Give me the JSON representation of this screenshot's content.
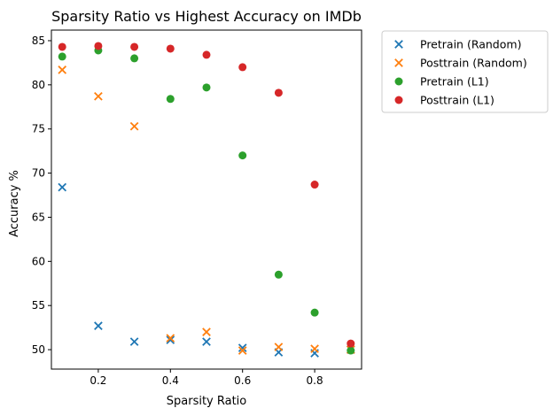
{
  "chart_data": {
    "type": "scatter",
    "title": "Sparsity Ratio vs Highest Accuracy on IMDb",
    "xlabel": "Sparsity Ratio",
    "ylabel": "Accuracy %",
    "xlim": [
      0.07,
      0.93
    ],
    "ylim": [
      47.8,
      86.2
    ],
    "xticks": [
      0.2,
      0.4,
      0.6,
      0.8
    ],
    "xtick_labels": [
      "0.2",
      "0.4",
      "0.6",
      "0.8"
    ],
    "yticks": [
      50,
      55,
      60,
      65,
      70,
      75,
      80,
      85
    ],
    "ytick_labels": [
      "50",
      "55",
      "60",
      "65",
      "70",
      "75",
      "80",
      "85"
    ],
    "grid": false,
    "legend_position": "outside-right",
    "x": [
      0.1,
      0.2,
      0.3,
      0.4,
      0.5,
      0.6,
      0.7,
      0.8,
      0.9
    ],
    "series": [
      {
        "name": "Pretrain (Random)",
        "marker": "x",
        "color": "#1f77b4",
        "values": [
          68.4,
          52.7,
          50.9,
          51.1,
          50.9,
          50.2,
          49.7,
          49.6,
          50.0
        ]
      },
      {
        "name": "Posttrain (Random)",
        "marker": "x",
        "color": "#ff7f0e",
        "values": [
          81.7,
          78.7,
          75.3,
          51.3,
          52.0,
          49.9,
          50.3,
          50.1,
          50.0
        ]
      },
      {
        "name": "Pretrain (L1)",
        "marker": "o",
        "color": "#2ca02c",
        "values": [
          83.2,
          83.9,
          83.0,
          78.4,
          79.7,
          72.0,
          58.5,
          54.2,
          49.9
        ]
      },
      {
        "name": "Posttrain (L1)",
        "marker": "o",
        "color": "#d62728",
        "values": [
          84.3,
          84.4,
          84.3,
          84.1,
          83.4,
          82.0,
          79.1,
          68.7,
          50.7
        ]
      }
    ]
  }
}
